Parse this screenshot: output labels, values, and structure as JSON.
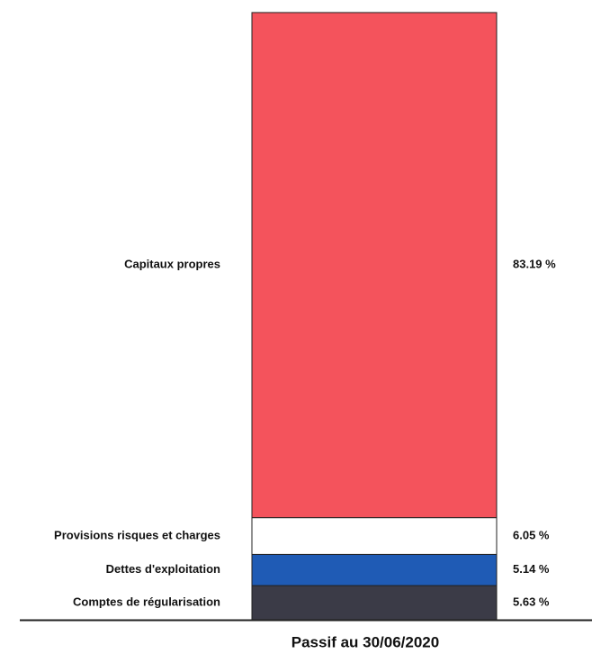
{
  "chart_data": {
    "type": "stacked_bar",
    "categories": [
      "Passif au 30/06/2020"
    ],
    "ylim": [
      0,
      100
    ],
    "series": [
      {
        "name": "Comptes de régularisation",
        "color": "#3b3b47",
        "values": [
          5.63
        ],
        "value_labels": [
          "5.63 %"
        ]
      },
      {
        "name": "Dettes d'exploitation",
        "color": "#1f5bb5",
        "values": [
          5.14
        ],
        "value_labels": [
          "5.14 %"
        ]
      },
      {
        "name": "Provisions risques et charges",
        "color": "#ffffff",
        "values": [
          6.05
        ],
        "value_labels": [
          "6.05 %"
        ]
      },
      {
        "name": "Capitaux propres",
        "color": "#f4535c",
        "values": [
          83.19
        ],
        "value_labels": [
          "83.19 %"
        ]
      }
    ]
  }
}
